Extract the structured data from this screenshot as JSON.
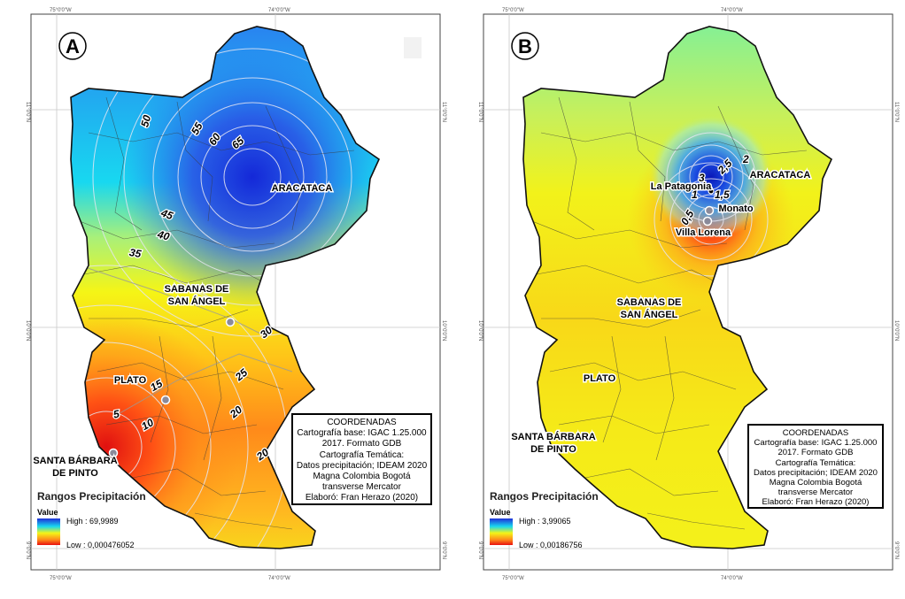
{
  "panels": [
    {
      "id": "A",
      "badge": "A",
      "coords": {
        "top_left": "75°0'0\"W",
        "top_right": "74°0'0\"W",
        "bottom_left": "75°0'0\"W",
        "bottom_right": "74°0'0\"W",
        "lat_upper": "11°0'0\"N",
        "lat_mid": "10°0'0\"N",
        "lat_lower": "9°0'0\"N"
      },
      "places": [
        {
          "name": "ARACATACA",
          "lines": [
            "ARACATACA"
          ]
        },
        {
          "name": "SABANAS DE SAN ÁNGEL",
          "lines": [
            "SABANAS DE",
            "SAN ÁNGEL"
          ]
        },
        {
          "name": "PLATO",
          "lines": [
            "PLATO"
          ]
        },
        {
          "name": "SANTA BÁRBARA DE PINTO",
          "lines": [
            "SANTA BÁRBARA",
            "DE PINTO"
          ]
        }
      ],
      "contour_labels": [
        "50",
        "55",
        "60",
        "65",
        "45",
        "40",
        "35",
        "30",
        "25",
        "20",
        "20",
        "15",
        "10",
        "5"
      ],
      "legend": {
        "title": "Rangos Precipitación",
        "value_label": "Value",
        "high": "High : 69,9989",
        "low": "Low : 0,000476052"
      },
      "info": [
        "COORDENADAS",
        "Cartografía base: IGAC 1.25.000",
        "2017. Formato GDB",
        "Cartografía Temática:",
        "Datos precipitación; IDEAM 2020",
        "Magna Colombia Bogotá",
        "transverse Mercator",
        "Elaboró: Fran Herazo (2020)"
      ]
    },
    {
      "id": "B",
      "badge": "B",
      "coords": {
        "top_left": "75°0'0\"W",
        "top_right": "74°0'0\"W",
        "bottom_left": "75°0'0\"W",
        "bottom_right": "74°0'0\"W",
        "lat_upper": "11°0'0\"N",
        "lat_mid": "10°0'0\"N",
        "lat_lower": "9°0'0\"N"
      },
      "places": [
        {
          "name": "ARACATACA",
          "lines": [
            "ARACATACA"
          ]
        },
        {
          "name": "La Patagonia",
          "lines": [
            "La Patagonia"
          ]
        },
        {
          "name": "Monato",
          "lines": [
            "Monato"
          ]
        },
        {
          "name": "Villa Lorena",
          "lines": [
            "Villa Lorena"
          ]
        },
        {
          "name": "SABANAS DE SAN ÁNGEL",
          "lines": [
            "SABANAS DE",
            "SAN ÁNGEL"
          ]
        },
        {
          "name": "PLATO",
          "lines": [
            "PLATO"
          ]
        },
        {
          "name": "SANTA BÁRBARA DE PINTO",
          "lines": [
            "SANTA BÁRBARA",
            "DE PINTO"
          ]
        }
      ],
      "contour_labels": [
        "2",
        "2,5",
        "3",
        "1",
        "1,5",
        "0,5"
      ],
      "legend": {
        "title": "Rangos Precipitación",
        "value_label": "Value",
        "high": "High : 3,99065",
        "low": "Low : 0,00186756"
      },
      "info": [
        "COORDENADAS",
        "Cartografía base: IGAC 1.25.000",
        "2017. Formato GDB",
        "Cartografía Temática:",
        "Datos precipitación; IDEAM 2020",
        "Magna Colombia Bogotá",
        "transverse Mercator",
        "Elaboró: Fran Herazo (2020)"
      ]
    }
  ],
  "colors": {
    "high": "#1f2fd8",
    "mid_cyan": "#18d8f0",
    "mid_yellow": "#f5f516",
    "orange": "#ff8a1a",
    "low": "#e81010"
  }
}
